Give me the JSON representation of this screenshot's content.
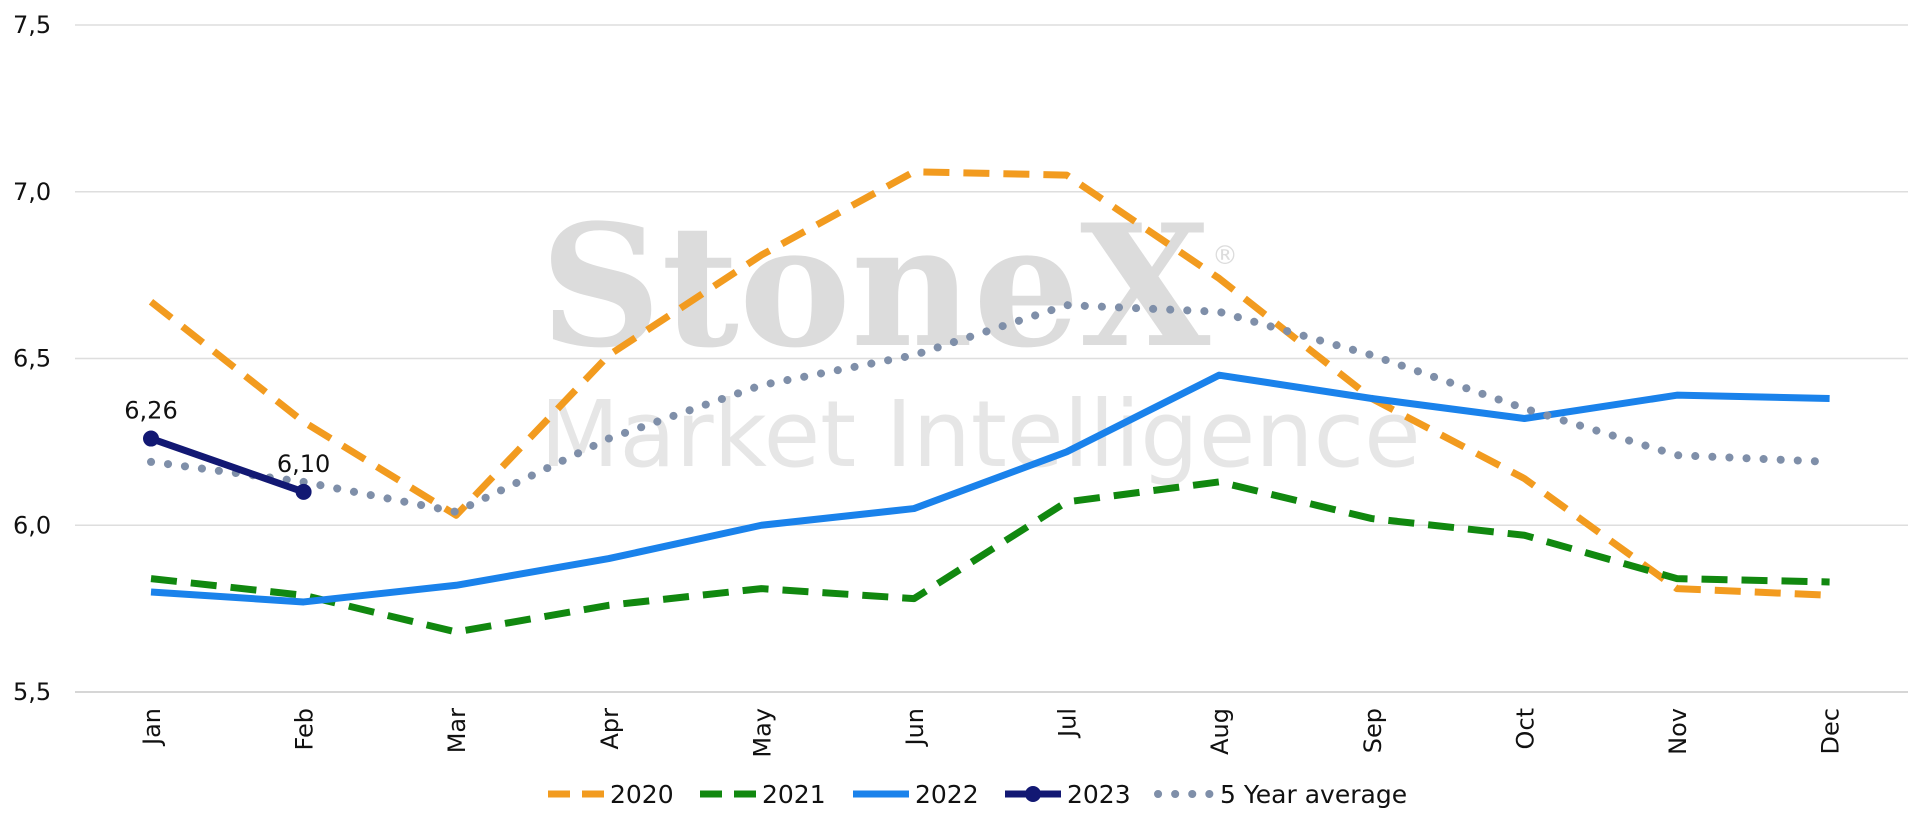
{
  "watermark": {
    "brand": "StoneX",
    "tagline": "Market Intelligence",
    "registered_mark": "®"
  },
  "chart_data": {
    "type": "line",
    "title": "",
    "xlabel": "",
    "ylabel": "",
    "categories": [
      "Jan",
      "Feb",
      "Mar",
      "Apr",
      "May",
      "Jun",
      "Jul",
      "Aug",
      "Sep",
      "Oct",
      "Nov",
      "Dec"
    ],
    "ylim": [
      5.5,
      7.5
    ],
    "yticks": [
      5.5,
      6.0,
      6.5,
      7.0,
      7.5
    ],
    "ytick_labels": [
      "5,5",
      "6,0",
      "6,5",
      "7,0",
      "7,5"
    ],
    "grid": "horizontal",
    "legend_position": "bottom",
    "series": [
      {
        "name": "2020",
        "color": "#f29b1f",
        "style": "dashed",
        "values": [
          6.67,
          6.31,
          6.03,
          6.51,
          6.81,
          7.06,
          7.05,
          6.74,
          6.38,
          6.14,
          5.81,
          5.79
        ]
      },
      {
        "name": "2021",
        "color": "#11880f",
        "style": "dashed",
        "values": [
          5.84,
          5.79,
          5.68,
          5.76,
          5.81,
          5.78,
          6.07,
          6.13,
          6.02,
          5.97,
          5.84,
          5.83
        ]
      },
      {
        "name": "2022",
        "color": "#1a82eb",
        "style": "solid",
        "values": [
          5.8,
          5.77,
          5.82,
          5.9,
          6.0,
          6.05,
          6.22,
          6.45,
          6.38,
          6.32,
          6.39,
          6.38
        ]
      },
      {
        "name": "2023",
        "color": "#121873",
        "style": "solid-markers",
        "values": [
          6.26,
          6.1,
          null,
          null,
          null,
          null,
          null,
          null,
          null,
          null,
          null,
          null
        ],
        "data_labels": [
          "6,26",
          "6,10"
        ]
      },
      {
        "name": "5 Year average",
        "color": "#7f8fa9",
        "style": "dotted",
        "values": [
          6.19,
          6.13,
          6.04,
          6.26,
          6.42,
          6.51,
          6.66,
          6.64,
          6.51,
          6.35,
          6.21,
          6.19
        ]
      }
    ]
  }
}
